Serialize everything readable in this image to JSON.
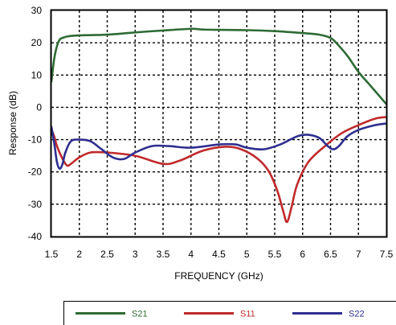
{
  "chart_data": {
    "type": "line",
    "xlabel": "FREQUENCY (GHz)",
    "ylabel": "Response (dB)",
    "xlim": [
      1.5,
      7.5
    ],
    "ylim": [
      -40,
      30
    ],
    "xticks": [
      1.5,
      2,
      2.5,
      3,
      3.5,
      4,
      4.5,
      5,
      5.5,
      6,
      6.5,
      7,
      7.5
    ],
    "xtick_labels": [
      "1.5",
      "2",
      "2.5",
      "3",
      "3.5",
      "4",
      "4.5",
      "5",
      "5.5",
      "6",
      "6.5",
      "7",
      "7.5"
    ],
    "yticks": [
      -40,
      -30,
      -20,
      -10,
      0,
      10,
      20,
      30
    ],
    "ytick_labels": [
      "-40",
      "-30",
      "-20",
      "-10",
      "0",
      "10",
      "20",
      "30"
    ],
    "grid": true,
    "legend_position": "bottom",
    "series": [
      {
        "name": "S21",
        "color": "#2e6b35",
        "x": [
          1.5,
          1.55,
          1.6,
          1.65,
          1.7,
          1.8,
          2.0,
          2.5,
          3.0,
          3.5,
          4.0,
          4.2,
          4.5,
          5.0,
          5.5,
          6.0,
          6.3,
          6.5,
          6.6,
          6.8,
          7.0,
          7.2,
          7.4,
          7.5
        ],
        "y": [
          8,
          15,
          19,
          21,
          21.5,
          22,
          22.3,
          22.5,
          23.2,
          23.8,
          24.3,
          24.1,
          24,
          23.9,
          23.6,
          23,
          22.5,
          21.5,
          20,
          16,
          11,
          7,
          3,
          1
        ]
      },
      {
        "name": "S11",
        "color": "#c0292b",
        "x": [
          1.5,
          1.55,
          1.6,
          1.7,
          1.78,
          1.85,
          2.0,
          2.2,
          2.5,
          3.0,
          3.5,
          3.8,
          4.2,
          4.6,
          4.9,
          5.2,
          5.4,
          5.55,
          5.65,
          5.72,
          5.8,
          5.9,
          6.1,
          6.4,
          6.7,
          7.0,
          7.3,
          7.5
        ],
        "y": [
          -7,
          -9,
          -12,
          -16,
          -18,
          -17.5,
          -15.5,
          -14,
          -14,
          -15,
          -17.5,
          -16.5,
          -13.5,
          -12.2,
          -13,
          -16,
          -20,
          -26,
          -32,
          -35.5,
          -31,
          -24,
          -17,
          -12,
          -8,
          -5.5,
          -3.5,
          -3
        ]
      },
      {
        "name": "S22",
        "color": "#2e2e8f",
        "x": [
          1.5,
          1.55,
          1.6,
          1.65,
          1.7,
          1.75,
          1.85,
          2.0,
          2.2,
          2.4,
          2.6,
          2.8,
          3.0,
          3.3,
          3.6,
          4.0,
          4.5,
          4.8,
          5.0,
          5.3,
          5.6,
          5.9,
          6.1,
          6.3,
          6.45,
          6.55,
          6.65,
          6.8,
          7.0,
          7.3,
          7.5
        ],
        "y": [
          -6,
          -11,
          -17,
          -19,
          -17.5,
          -14,
          -10.5,
          -10,
          -10.5,
          -13,
          -15.5,
          -16,
          -14,
          -12,
          -12,
          -12.5,
          -11.5,
          -11.5,
          -12.5,
          -13,
          -11.5,
          -9,
          -8.5,
          -9.5,
          -12,
          -13,
          -12,
          -9,
          -7,
          -5.5,
          -5
        ]
      }
    ]
  }
}
